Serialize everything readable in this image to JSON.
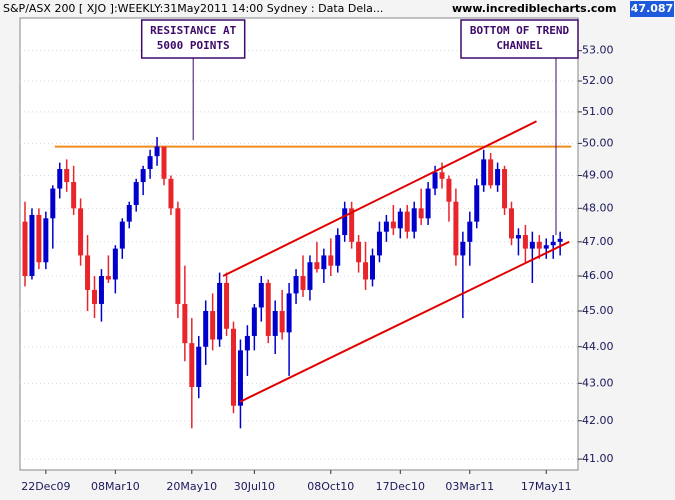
{
  "chart_data": {
    "type": "candlestick",
    "title": "S&P/ASX 200 [ XJO ]:WEEKLY:31May2011 14:00 Sydney : Data Dela...",
    "source": "www.incrediblecharts.com",
    "last_price": "47.087",
    "log_scale": true,
    "ylim": [
      40.72,
      54.1
    ],
    "yticks": [
      {
        "value": 41,
        "label": "41.00"
      },
      {
        "value": 42,
        "label": "42.00"
      },
      {
        "value": 43,
        "label": "43.00"
      },
      {
        "value": 44,
        "label": "44.00"
      },
      {
        "value": 45,
        "label": "45.00"
      },
      {
        "value": 46,
        "label": "46.00"
      },
      {
        "value": 47,
        "label": "47.00"
      },
      {
        "value": 48,
        "label": "48.00"
      },
      {
        "value": 49,
        "label": "49.00"
      },
      {
        "value": 50,
        "label": "50.00"
      },
      {
        "value": 51,
        "label": "51.00"
      },
      {
        "value": 52,
        "label": "52.00"
      },
      {
        "value": 53,
        "label": "53.00"
      }
    ],
    "categories": [
      null,
      null,
      null,
      "22Dec09",
      null,
      null,
      null,
      null,
      null,
      null,
      null,
      null,
      null,
      "08Mar10",
      null,
      null,
      null,
      null,
      null,
      null,
      null,
      null,
      null,
      null,
      "20May10",
      null,
      null,
      null,
      null,
      null,
      null,
      null,
      null,
      "30Jul10",
      null,
      null,
      null,
      null,
      null,
      null,
      null,
      null,
      null,
      null,
      "08Oct10",
      null,
      null,
      null,
      null,
      null,
      null,
      null,
      null,
      null,
      "17Dec10",
      null,
      null,
      null,
      null,
      null,
      null,
      null,
      null,
      null,
      "03Mar11",
      null,
      null,
      null,
      null,
      null,
      null,
      null,
      null,
      null,
      null,
      "17May11",
      null,
      null
    ],
    "up_color": "#0000cc",
    "down_color": "#e8252b",
    "open": [
      47.6,
      46.0,
      47.8,
      46.4,
      47.7,
      48.6,
      49.2,
      48.8,
      48.0,
      46.6,
      45.6,
      45.2,
      46.0,
      45.9,
      46.8,
      47.6,
      48.1,
      48.8,
      49.2,
      49.6,
      49.9,
      48.9,
      48.0,
      45.2,
      44.1,
      42.9,
      44.0,
      45.0,
      44.2,
      45.8,
      44.5,
      42.4,
      43.9,
      44.3,
      45.1,
      45.8,
      44.3,
      45.0,
      44.4,
      45.5,
      46.0,
      45.6,
      46.4,
      46.2,
      46.6,
      46.3,
      47.2,
      48.0,
      47.0,
      46.4,
      45.9,
      46.6,
      47.3,
      47.6,
      47.4,
      47.9,
      47.3,
      48.0,
      47.7,
      48.6,
      49.1,
      48.9,
      48.2,
      46.6,
      47.0,
      47.6,
      48.7,
      49.5,
      48.7,
      49.2,
      48.0,
      47.1,
      47.2,
      46.8,
      47.0,
      46.8,
      46.9,
      47.0
    ],
    "high": [
      48.2,
      48.0,
      48.0,
      47.9,
      48.7,
      49.4,
      49.5,
      49.3,
      48.3,
      47.2,
      46.0,
      46.2,
      46.6,
      46.9,
      47.7,
      48.2,
      48.9,
      49.3,
      49.8,
      50.2,
      49.9,
      49.0,
      48.2,
      46.3,
      44.8,
      44.3,
      45.3,
      45.5,
      46.1,
      46.1,
      44.7,
      44.2,
      44.6,
      45.2,
      46.0,
      45.9,
      45.3,
      45.6,
      45.8,
      46.2,
      46.6,
      46.6,
      47.0,
      46.8,
      47.1,
      47.4,
      48.2,
      48.2,
      47.2,
      47.0,
      46.8,
      47.6,
      47.8,
      48.1,
      48.0,
      48.1,
      48.2,
      48.6,
      48.8,
      49.3,
      49.4,
      49.0,
      48.6,
      47.3,
      47.9,
      48.9,
      49.8,
      49.7,
      49.4,
      49.3,
      48.2,
      47.4,
      47.5,
      47.3,
      47.2,
      47.1,
      47.2,
      47.3
    ],
    "low": [
      45.7,
      45.9,
      46.2,
      46.2,
      46.8,
      48.3,
      48.5,
      47.8,
      46.3,
      45.0,
      44.8,
      44.7,
      45.8,
      45.5,
      46.5,
      47.4,
      47.9,
      48.4,
      48.9,
      49.3,
      48.7,
      47.8,
      44.8,
      43.6,
      41.8,
      42.6,
      43.5,
      43.9,
      44.0,
      44.3,
      42.2,
      41.8,
      43.2,
      43.9,
      44.7,
      44.1,
      43.8,
      44.2,
      43.2,
      45.2,
      45.4,
      45.3,
      46.1,
      45.8,
      46.0,
      46.1,
      47.0,
      46.8,
      46.1,
      45.6,
      45.7,
      46.4,
      47.0,
      47.2,
      47.1,
      47.1,
      47.1,
      47.5,
      47.5,
      48.4,
      48.6,
      47.6,
      46.3,
      44.8,
      46.3,
      47.4,
      48.5,
      48.6,
      48.5,
      47.8,
      46.9,
      46.6,
      46.4,
      45.8,
      46.5,
      46.5,
      46.5,
      46.6
    ],
    "close": [
      46.0,
      47.8,
      46.4,
      47.7,
      48.6,
      49.2,
      48.8,
      48.0,
      46.6,
      45.6,
      45.2,
      46.0,
      45.9,
      46.8,
      47.6,
      48.1,
      48.8,
      49.2,
      49.6,
      49.9,
      48.9,
      48.0,
      45.2,
      44.1,
      42.9,
      44.0,
      45.0,
      44.2,
      45.8,
      44.5,
      42.4,
      43.9,
      44.3,
      45.1,
      45.8,
      44.3,
      45.0,
      44.4,
      45.5,
      46.0,
      45.6,
      46.4,
      46.2,
      46.6,
      46.3,
      47.2,
      48.0,
      47.0,
      46.4,
      45.9,
      46.6,
      47.3,
      47.6,
      47.4,
      47.9,
      47.3,
      48.0,
      47.7,
      48.6,
      49.1,
      48.9,
      48.2,
      46.6,
      47.0,
      47.6,
      48.7,
      49.5,
      48.7,
      49.2,
      48.0,
      47.1,
      47.2,
      46.8,
      47.0,
      46.8,
      46.9,
      47.0,
      47.087
    ],
    "resistance": {
      "color": "#f08c1e",
      "value": 49.9,
      "x": [
        4.3,
        78.6
      ]
    },
    "trendlines": [
      {
        "color": "#e00000",
        "x": [
          28.5,
          73.6
        ],
        "y": [
          46.0,
          50.7
        ]
      },
      {
        "color": "#e00000",
        "x": [
          30.9,
          78.3
        ],
        "y": [
          42.5,
          47.0
        ]
      }
    ],
    "annotations": [
      {
        "lines": [
          "RESISTANCE AT",
          "5000 POINTS"
        ],
        "x": 24.2,
        "y": 50.1
      },
      {
        "lines": [
          "BOTTOM OF TREND",
          "CHANNEL"
        ],
        "x": 76.4,
        "y": 47.2
      }
    ]
  }
}
